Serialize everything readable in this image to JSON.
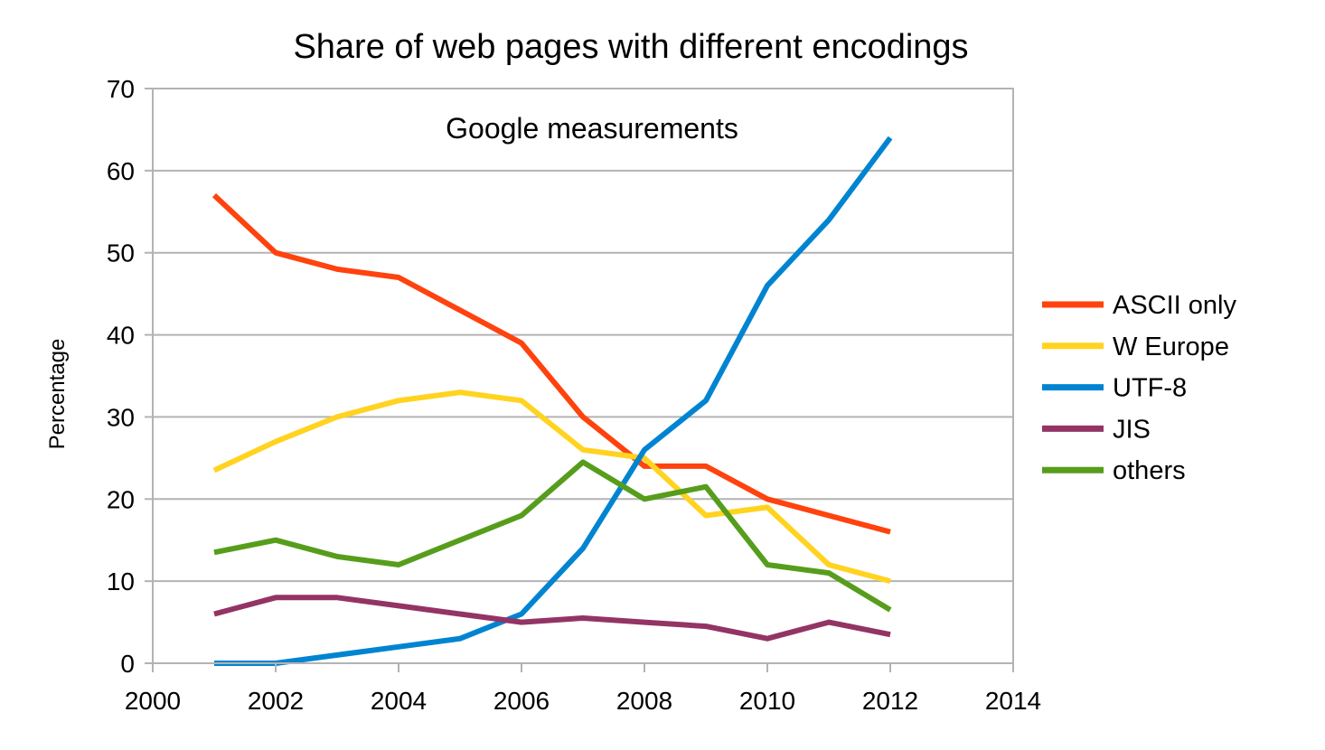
{
  "chart_data": {
    "type": "line",
    "title": "Share of web pages with different encodings",
    "annotation": "Google measurements",
    "xlabel": "",
    "ylabel": "Percentage",
    "xlim": [
      2000,
      2014
    ],
    "ylim": [
      0,
      70
    ],
    "xticks": [
      2000,
      2002,
      2004,
      2006,
      2008,
      2010,
      2012,
      2014
    ],
    "yticks": [
      0,
      10,
      20,
      30,
      40,
      50,
      60,
      70
    ],
    "grid": "horizontal",
    "legend_position": "right",
    "x": [
      2001,
      2002,
      2003,
      2004,
      2005,
      2006,
      2007,
      2008,
      2009,
      2010,
      2011,
      2012
    ],
    "series": [
      {
        "name": "ASCII only",
        "color": "#ff420e",
        "values": [
          57,
          50,
          48,
          47,
          43,
          39,
          30,
          24,
          24,
          20,
          18,
          16
        ]
      },
      {
        "name": "W Europe",
        "color": "#ffd320",
        "values": [
          23.5,
          27,
          30,
          32,
          33,
          32,
          26,
          25,
          18,
          19,
          12,
          10
        ]
      },
      {
        "name": "UTF-8",
        "color": "#0084d1",
        "values": [
          0,
          0,
          1,
          2,
          3,
          6,
          14,
          26,
          32,
          46,
          54,
          64
        ]
      },
      {
        "name": "JIS",
        "color": "#933465",
        "values": [
          6,
          8,
          8,
          7,
          6,
          5,
          5.5,
          5,
          4.5,
          3,
          5,
          3.5
        ]
      },
      {
        "name": "others",
        "color": "#579d1c",
        "values": [
          13.5,
          15,
          13,
          12,
          15,
          18,
          24.5,
          20,
          21.5,
          12,
          11,
          6.5
        ]
      }
    ]
  }
}
